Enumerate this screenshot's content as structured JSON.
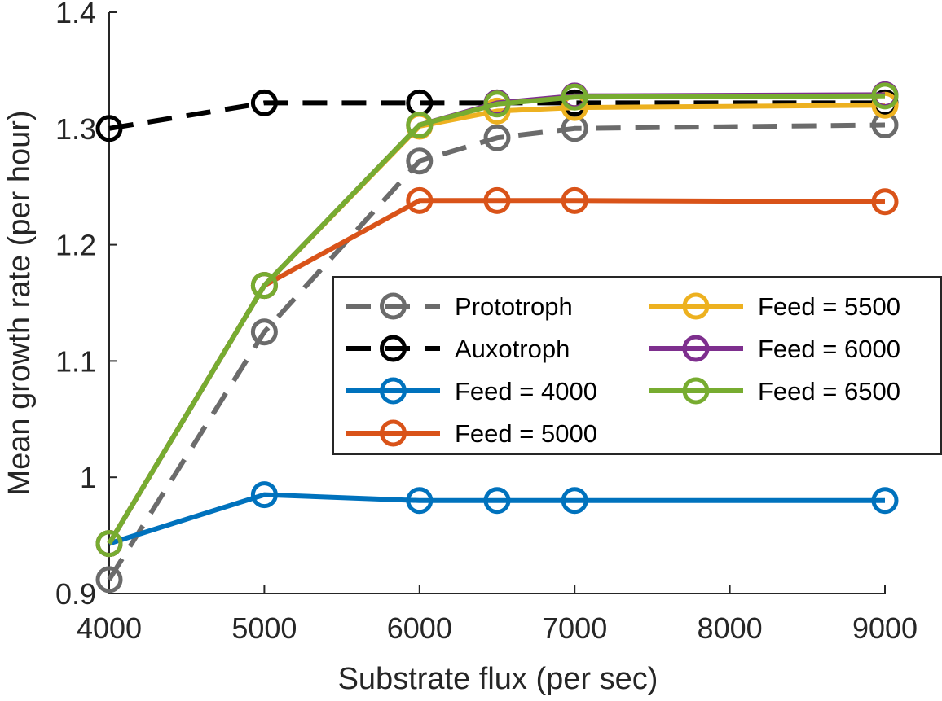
{
  "chart_data": {
    "type": "line",
    "xlabel": "Substrate flux (per sec)",
    "ylabel": "Mean growth rate (per hour)",
    "xlim": [
      4000,
      9000
    ],
    "ylim": [
      0.9,
      1.4
    ],
    "xticks": [
      "4000",
      "5000",
      "6000",
      "7000",
      "8000",
      "9000"
    ],
    "yticks": [
      "0.9",
      "1",
      "1.1",
      "1.2",
      "1.3",
      "1.4"
    ],
    "grid": false,
    "legend_position": "center-right",
    "x": [
      4000,
      5000,
      6000,
      6500,
      7000,
      9000
    ],
    "series": [
      {
        "name": "Prototroph",
        "color": "#6b6b6b",
        "dash": true,
        "values": [
          0.912,
          1.125,
          1.272,
          1.292,
          1.3,
          1.303
        ]
      },
      {
        "name": "Auxotroph",
        "color": "#000000",
        "dash": true,
        "values": [
          1.3,
          1.322,
          1.322,
          1.322,
          1.322,
          1.322
        ]
      },
      {
        "name": "Feed = 4000",
        "color": "#0072bd",
        "dash": false,
        "values": [
          0.943,
          0.985,
          0.98,
          0.98,
          0.98,
          0.98
        ]
      },
      {
        "name": "Feed = 5000",
        "color": "#d95319",
        "dash": false,
        "values": [
          0.943,
          1.165,
          1.238,
          1.238,
          1.238,
          1.237
        ]
      },
      {
        "name": "Feed = 5500",
        "color": "#edb120",
        "dash": false,
        "values": [
          0.943,
          1.165,
          1.302,
          1.315,
          1.318,
          1.32
        ]
      },
      {
        "name": "Feed = 6000",
        "color": "#7e2f8e",
        "dash": false,
        "values": [
          0.943,
          1.165,
          1.303,
          1.322,
          1.328,
          1.329
        ]
      },
      {
        "name": "Feed = 6500",
        "color": "#77ac30",
        "dash": false,
        "values": [
          0.943,
          1.165,
          1.303,
          1.321,
          1.327,
          1.328
        ]
      }
    ]
  }
}
